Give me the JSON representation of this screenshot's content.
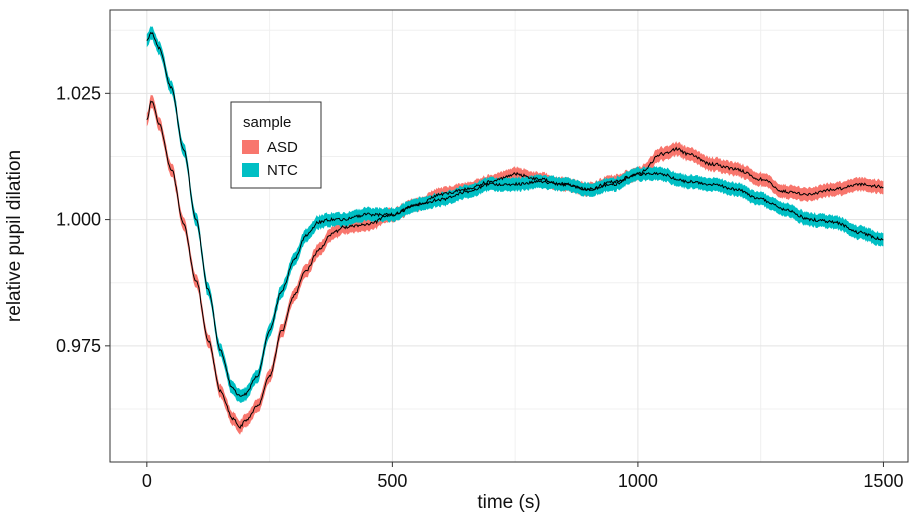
{
  "chart_data": {
    "type": "line",
    "xlabel": "time (s)",
    "ylabel": "relative pupil dilation",
    "xlim": [
      -75,
      1550
    ],
    "ylim": [
      0.952,
      1.0415
    ],
    "x_ticks": [
      0,
      500,
      1000,
      1500
    ],
    "x_tick_labels": [
      "0",
      "500",
      "1000",
      "1500"
    ],
    "y_ticks": [
      0.975,
      1.0,
      1.025
    ],
    "y_tick_labels": [
      "0.975",
      "1.000",
      "1.025"
    ],
    "grid": true,
    "legend": {
      "title": "sample",
      "position": "top-left"
    },
    "series": [
      {
        "name": "ASD",
        "color": "#F8766D",
        "band_halfwidth": 0.0013,
        "x": [
          0,
          10,
          25,
          50,
          75,
          100,
          125,
          150,
          175,
          190,
          200,
          225,
          250,
          275,
          300,
          325,
          350,
          375,
          400,
          450,
          500,
          550,
          600,
          650,
          700,
          750,
          800,
          850,
          900,
          950,
          1000,
          1050,
          1080,
          1100,
          1150,
          1200,
          1250,
          1300,
          1350,
          1400,
          1450,
          1500
        ],
        "values": [
          1.02,
          1.0235,
          1.019,
          1.01,
          0.999,
          0.988,
          0.976,
          0.966,
          0.9605,
          0.959,
          0.96,
          0.963,
          0.969,
          0.978,
          0.985,
          0.99,
          0.994,
          0.997,
          0.9985,
          0.999,
          1.001,
          1.003,
          1.005,
          1.006,
          1.0075,
          1.009,
          1.008,
          1.007,
          1.006,
          1.0075,
          1.009,
          1.013,
          1.014,
          1.013,
          1.011,
          1.01,
          1.008,
          1.0055,
          1.005,
          1.006,
          1.007,
          1.0065
        ]
      },
      {
        "name": "NTC",
        "color": "#00BFC4",
        "band_halfwidth": 0.0013,
        "x": [
          0,
          10,
          25,
          50,
          75,
          100,
          125,
          150,
          175,
          190,
          200,
          225,
          250,
          275,
          300,
          325,
          350,
          375,
          400,
          450,
          500,
          550,
          600,
          650,
          700,
          750,
          800,
          850,
          900,
          950,
          1000,
          1050,
          1080,
          1100,
          1150,
          1200,
          1250,
          1300,
          1350,
          1400,
          1450,
          1500
        ],
        "values": [
          1.0355,
          1.037,
          1.034,
          1.026,
          1.014,
          1.0,
          0.986,
          0.974,
          0.9665,
          0.965,
          0.9655,
          0.969,
          0.978,
          0.986,
          0.992,
          0.997,
          0.9995,
          1.0,
          1.0,
          1.001,
          1.001,
          1.003,
          1.004,
          1.0055,
          1.007,
          1.007,
          1.0075,
          1.007,
          1.006,
          1.007,
          1.009,
          1.009,
          1.008,
          1.0075,
          1.007,
          1.006,
          1.004,
          1.002,
          1.0,
          0.9995,
          0.9975,
          0.996
        ]
      }
    ]
  }
}
